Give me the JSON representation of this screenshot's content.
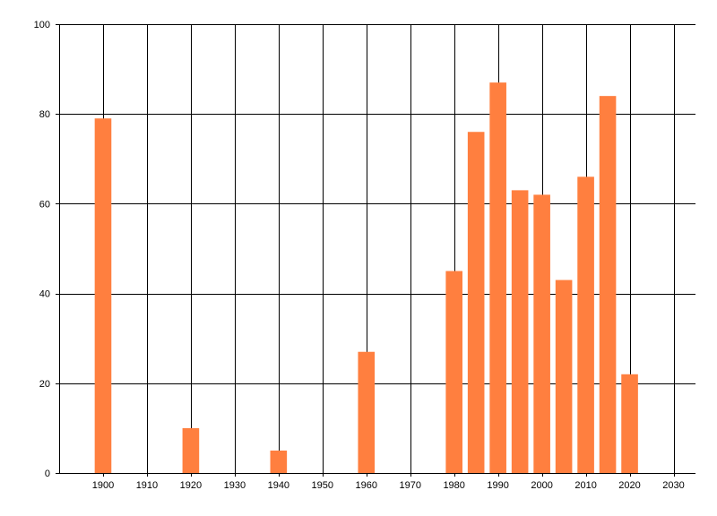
{
  "chart_data": {
    "type": "bar",
    "title": "",
    "xlabel": "",
    "ylabel": "",
    "x": [
      1900,
      1920,
      1940,
      1960,
      1980,
      1985,
      1990,
      1995,
      2000,
      2005,
      2010,
      2015,
      2020
    ],
    "values": [
      79,
      10,
      5,
      27,
      45,
      76,
      87,
      63,
      62,
      43,
      66,
      84,
      22
    ],
    "xlim": [
      1890,
      2035
    ],
    "ylim": [
      0,
      100
    ],
    "x_ticks": [
      1900,
      1910,
      1920,
      1930,
      1940,
      1950,
      1960,
      1970,
      1980,
      1990,
      2000,
      2010,
      2020,
      2030
    ],
    "y_ticks": [
      0,
      20,
      40,
      60,
      80,
      100
    ],
    "grid": true,
    "legend": "none",
    "colors": {
      "bar": "#FF7F3F",
      "grid": "#000000",
      "axis": "#000000",
      "background": "#FFFFFF"
    }
  }
}
